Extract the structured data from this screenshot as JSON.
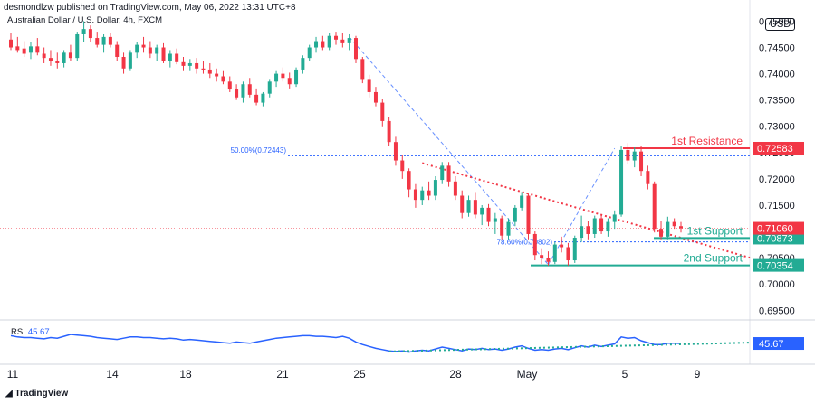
{
  "header": {
    "publisher": "desmondlzw published on TradingView.com, May 06, 2022 13:31 UTC+8",
    "symbol": "Australian Dollar / U.S. Dollar, 4h, FXCM",
    "currency": "USD",
    "footer_brand": "TradingView"
  },
  "rsi": {
    "label": "RSI",
    "value": "45.67"
  },
  "chart_data": {
    "type": "candlestick",
    "price_axis": {
      "ticks": [
        "0.75000",
        "0.74500",
        "0.74000",
        "0.73500",
        "0.73000",
        "0.72500",
        "0.72000",
        "0.71500",
        "0.71000",
        "0.70500",
        "0.70000",
        "0.69500"
      ],
      "range": [
        0.6935,
        0.753
      ]
    },
    "x_ticks": [
      "11",
      "14",
      "18",
      "21",
      "25",
      "28",
      "May",
      "5",
      "9"
    ],
    "fib_labels": [
      "50.00%(0.72443)",
      "78.60%(0.70802)"
    ],
    "levels": [
      {
        "name": "1st Resistance",
        "value": "0.72583",
        "color": "#f23645"
      },
      {
        "name": "1st Support",
        "value": "0.70873",
        "color": "#22ab94"
      },
      {
        "name": "2nd Support",
        "value": "0.70354",
        "color": "#22ab94"
      }
    ],
    "current_price": {
      "value": "0.71060",
      "color": "#f23645"
    },
    "rsi_current": "45.67",
    "colors": {
      "up": "#22ab94",
      "down": "#f23645",
      "rsi": "#2962ff",
      "fib": "#2962ff"
    },
    "ohlc": [
      [
        0.7465,
        0.7478,
        0.7445,
        0.745
      ],
      [
        0.7452,
        0.747,
        0.744,
        0.7445
      ],
      [
        0.7448,
        0.7462,
        0.7432,
        0.7438
      ],
      [
        0.744,
        0.746,
        0.7428,
        0.7452
      ],
      [
        0.7452,
        0.7468,
        0.7435,
        0.744
      ],
      [
        0.7438,
        0.745,
        0.742,
        0.743
      ],
      [
        0.743,
        0.7445,
        0.7415,
        0.7425
      ],
      [
        0.7425,
        0.744,
        0.741,
        0.742
      ],
      [
        0.742,
        0.7445,
        0.7412,
        0.744
      ],
      [
        0.744,
        0.7455,
        0.7425,
        0.743
      ],
      [
        0.743,
        0.748,
        0.7425,
        0.7475
      ],
      [
        0.7475,
        0.75,
        0.746,
        0.7485
      ],
      [
        0.7485,
        0.7492,
        0.746,
        0.7468
      ],
      [
        0.7468,
        0.748,
        0.745,
        0.7455
      ],
      [
        0.7455,
        0.7475,
        0.744,
        0.747
      ],
      [
        0.747,
        0.7478,
        0.745,
        0.7455
      ],
      [
        0.7455,
        0.7462,
        0.7425,
        0.7432
      ],
      [
        0.7432,
        0.744,
        0.74,
        0.741
      ],
      [
        0.741,
        0.7445,
        0.7405,
        0.744
      ],
      [
        0.744,
        0.746,
        0.743,
        0.7455
      ],
      [
        0.7455,
        0.747,
        0.744,
        0.745
      ],
      [
        0.745,
        0.7462,
        0.743,
        0.7438
      ],
      [
        0.7438,
        0.7455,
        0.7425,
        0.745
      ],
      [
        0.745,
        0.7458,
        0.742,
        0.7425
      ],
      [
        0.7425,
        0.7445,
        0.7412,
        0.7438
      ],
      [
        0.7438,
        0.7448,
        0.7418,
        0.7422
      ],
      [
        0.7422,
        0.7432,
        0.7405,
        0.7415
      ],
      [
        0.7415,
        0.7428,
        0.7405,
        0.742
      ],
      [
        0.742,
        0.743,
        0.74,
        0.741
      ],
      [
        0.741,
        0.7425,
        0.74,
        0.7408
      ],
      [
        0.7408,
        0.742,
        0.7392,
        0.74
      ],
      [
        0.74,
        0.741,
        0.7385,
        0.7395
      ],
      [
        0.7395,
        0.7405,
        0.738,
        0.7385
      ],
      [
        0.7385,
        0.7395,
        0.7365,
        0.737
      ],
      [
        0.737,
        0.738,
        0.735,
        0.7355
      ],
      [
        0.7355,
        0.7385,
        0.7345,
        0.738
      ],
      [
        0.738,
        0.7392,
        0.7355,
        0.736
      ],
      [
        0.736,
        0.7372,
        0.734,
        0.7345
      ],
      [
        0.7345,
        0.7365,
        0.7338,
        0.7362
      ],
      [
        0.7362,
        0.739,
        0.7355,
        0.7385
      ],
      [
        0.7385,
        0.7405,
        0.7375,
        0.74
      ],
      [
        0.74,
        0.7412,
        0.7385,
        0.7392
      ],
      [
        0.7392,
        0.7402,
        0.7372,
        0.738
      ],
      [
        0.738,
        0.7412,
        0.7375,
        0.7408
      ],
      [
        0.7408,
        0.7435,
        0.74,
        0.743
      ],
      [
        0.743,
        0.7455,
        0.7425,
        0.745
      ],
      [
        0.745,
        0.747,
        0.744,
        0.7462
      ],
      [
        0.7462,
        0.7472,
        0.7445,
        0.745
      ],
      [
        0.745,
        0.7478,
        0.7445,
        0.7472
      ],
      [
        0.7472,
        0.748,
        0.7455,
        0.7465
      ],
      [
        0.7465,
        0.7478,
        0.745,
        0.7458
      ],
      [
        0.7458,
        0.7475,
        0.7445,
        0.7468
      ],
      [
        0.7468,
        0.7472,
        0.742,
        0.7428
      ],
      [
        0.7428,
        0.7432,
        0.7382,
        0.739
      ],
      [
        0.739,
        0.7398,
        0.7355,
        0.7365
      ],
      [
        0.7365,
        0.7375,
        0.7338,
        0.7345
      ],
      [
        0.7345,
        0.7352,
        0.73,
        0.731
      ],
      [
        0.731,
        0.7318,
        0.7262,
        0.727
      ],
      [
        0.727,
        0.728,
        0.7225,
        0.7235
      ],
      [
        0.7235,
        0.7245,
        0.72,
        0.7215
      ],
      [
        0.7215,
        0.722,
        0.7165,
        0.718
      ],
      [
        0.718,
        0.719,
        0.7145,
        0.716
      ],
      [
        0.716,
        0.7185,
        0.715,
        0.7178
      ],
      [
        0.7178,
        0.7195,
        0.716,
        0.7168
      ],
      [
        0.7168,
        0.7205,
        0.716,
        0.7198
      ],
      [
        0.7198,
        0.7232,
        0.719,
        0.7225
      ],
      [
        0.7225,
        0.7232,
        0.7185,
        0.7195
      ],
      [
        0.7195,
        0.7205,
        0.716,
        0.7168
      ],
      [
        0.7168,
        0.7178,
        0.7125,
        0.7135
      ],
      [
        0.7135,
        0.7168,
        0.7128,
        0.716
      ],
      [
        0.716,
        0.7175,
        0.7125,
        0.7132
      ],
      [
        0.7132,
        0.715,
        0.7112,
        0.7145
      ],
      [
        0.7145,
        0.7152,
        0.711,
        0.7118
      ],
      [
        0.7118,
        0.7135,
        0.7095,
        0.7125
      ],
      [
        0.7125,
        0.713,
        0.7085,
        0.7092
      ],
      [
        0.7092,
        0.7125,
        0.7085,
        0.7118
      ],
      [
        0.7118,
        0.715,
        0.711,
        0.7145
      ],
      [
        0.7145,
        0.7175,
        0.714,
        0.7168
      ],
      [
        0.7168,
        0.7172,
        0.7085,
        0.7095
      ],
      [
        0.7095,
        0.71,
        0.7045,
        0.7055
      ],
      [
        0.7055,
        0.7068,
        0.7038,
        0.705
      ],
      [
        0.705,
        0.7062,
        0.7035,
        0.7042
      ],
      [
        0.7042,
        0.708,
        0.7038,
        0.7075
      ],
      [
        0.7075,
        0.709,
        0.706,
        0.707
      ],
      [
        0.707,
        0.7078,
        0.7035,
        0.7045
      ],
      [
        0.7045,
        0.7092,
        0.704,
        0.7088
      ],
      [
        0.7088,
        0.713,
        0.708,
        0.711
      ],
      [
        0.711,
        0.712,
        0.7085,
        0.7095
      ],
      [
        0.7095,
        0.713,
        0.7088,
        0.7125
      ],
      [
        0.7125,
        0.713,
        0.7095,
        0.71
      ],
      [
        0.71,
        0.7125,
        0.709,
        0.7118
      ],
      [
        0.7118,
        0.714,
        0.7105,
        0.7132
      ],
      [
        0.7132,
        0.7262,
        0.7128,
        0.7255
      ],
      [
        0.7255,
        0.7268,
        0.7228,
        0.7235
      ],
      [
        0.7235,
        0.726,
        0.7222,
        0.7252
      ],
      [
        0.7252,
        0.7262,
        0.7205,
        0.7215
      ],
      [
        0.7215,
        0.7225,
        0.718,
        0.719
      ],
      [
        0.719,
        0.7195,
        0.7098,
        0.7105
      ],
      [
        0.7105,
        0.712,
        0.7085,
        0.709
      ],
      [
        0.709,
        0.7128,
        0.7085,
        0.7118
      ],
      [
        0.7118,
        0.7125,
        0.7105,
        0.711
      ],
      [
        0.711,
        0.7118,
        0.7098,
        0.7106
      ]
    ],
    "rsi_values": [
      58,
      56,
      55,
      55,
      54,
      53,
      55,
      54,
      57,
      60,
      59,
      58,
      57,
      55,
      54,
      53,
      52,
      54,
      56,
      56,
      55,
      55,
      54,
      53,
      54,
      53,
      51,
      52,
      51,
      50,
      49,
      48,
      47,
      46,
      48,
      47,
      46,
      48,
      50,
      52,
      54,
      55,
      56,
      57,
      58,
      58,
      57,
      57,
      56,
      55,
      57,
      54,
      48,
      44,
      41,
      38,
      36,
      34,
      33,
      34,
      32,
      34,
      35,
      34,
      37,
      40,
      38,
      36,
      34,
      37,
      36,
      38,
      36,
      37,
      35,
      37,
      40,
      42,
      38,
      35,
      36,
      35,
      37,
      38,
      36,
      39,
      42,
      40,
      43,
      41,
      43,
      45,
      56,
      54,
      55,
      50,
      47,
      44,
      44,
      46,
      46,
      45.67
    ]
  }
}
